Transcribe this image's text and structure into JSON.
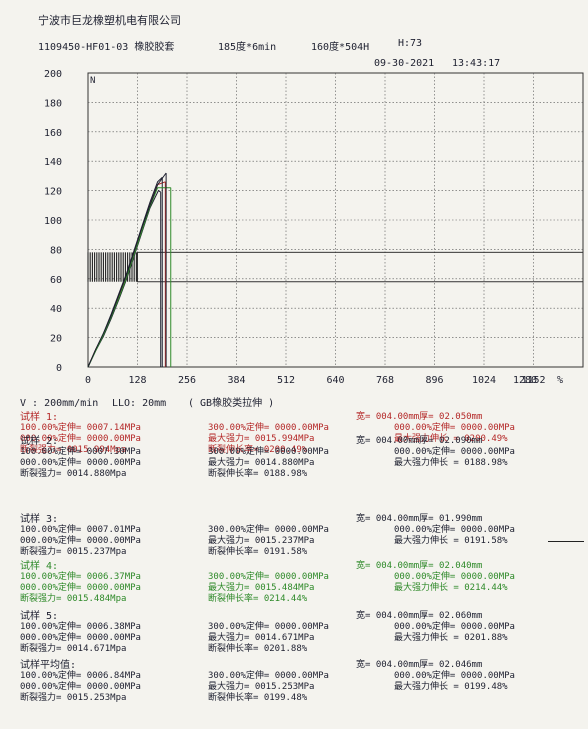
{
  "header": {
    "company": "宁波市巨龙橡塑机电有限公司",
    "product": "1109450-HF01-03 橡胶胶套",
    "cure": "185度*6min",
    "post_cure": "160度*504H",
    "hardness": "H:73",
    "date": "09-30-2021",
    "time": "13:43:17"
  },
  "chart_data": {
    "type": "line",
    "title": "",
    "xlabel": "",
    "ylabel": "",
    "x_unit": "%",
    "y_corner_label": "N",
    "xlim": [
      0,
      1280
    ],
    "ylim": [
      0,
      200
    ],
    "x_ticks": [
      "0",
      "128",
      "256",
      "384",
      "512",
      "640",
      "768",
      "896",
      "1024",
      "1152",
      "1280"
    ],
    "y_ticks": [
      "0",
      "20",
      "40",
      "60",
      "80",
      "100",
      "120",
      "140",
      "160",
      "180",
      "200"
    ],
    "grid": true,
    "series": [
      {
        "color": "#b42828",
        "x": [
          0,
          20,
          40,
          60,
          80,
          100,
          120,
          140,
          160,
          180,
          200
        ],
        "y": [
          0,
          12,
          22,
          35,
          48,
          62,
          78,
          95,
          110,
          124,
          126
        ]
      },
      {
        "color": "#1e2030",
        "x": [
          0,
          20,
          40,
          60,
          80,
          100,
          120,
          140,
          160,
          182,
          188
        ],
        "y": [
          0,
          11,
          21,
          33,
          46,
          60,
          76,
          92,
          108,
          120,
          119
        ]
      },
      {
        "color": "#1e2030",
        "x": [
          0,
          20,
          40,
          60,
          80,
          100,
          120,
          140,
          160,
          180,
          192
        ],
        "y": [
          0,
          12,
          23,
          36,
          50,
          64,
          80,
          96,
          112,
          126,
          129
        ]
      },
      {
        "color": "#2f8a2a",
        "x": [
          0,
          20,
          40,
          60,
          80,
          100,
          120,
          140,
          160,
          180,
          214
        ],
        "y": [
          0,
          11,
          22,
          34,
          47,
          61,
          77,
          93,
          109,
          122,
          122
        ]
      },
      {
        "color": "#1e2030",
        "x": [
          0,
          20,
          40,
          60,
          80,
          100,
          120,
          140,
          160,
          180,
          202
        ],
        "y": [
          0,
          12,
          23,
          35,
          49,
          63,
          79,
          95,
          110,
          124,
          132
        ]
      }
    ],
    "band": {
      "x_start": 0,
      "x_end": 128,
      "y_low": 58,
      "y_high": 78
    },
    "ref_box": {
      "x_start": 128,
      "x_end": 1280,
      "y_low": 58,
      "y_high": 78
    }
  },
  "params": {
    "speed": "V : 200mm/min",
    "llo": "LLO: 20mm",
    "standard": "( GB橡胶类拉伸 )"
  },
  "samples": [
    {
      "name": "试样 1:",
      "color": "red",
      "c1": [
        "100.00%定伸= 0007.14MPa",
        "000.00%定伸= 0000.00MPa",
        "断裂强力= 0015.994Mpa"
      ],
      "c2": [
        "300.00%定伸= 0000.00MPa",
        "最大强力= 0015.994MPa",
        "断裂伸长率= 0200.49%"
      ],
      "c3": [
        "宽= 004.00mm厚= 02.050mm",
        "000.00%定伸= 0000.00MPa",
        "最大强力伸长 = 0200.49%"
      ]
    },
    {
      "name": "试样 2:",
      "color": "black",
      "c1": [
        "100.00%定伸= 0007.30MPa",
        "000.00%定伸= 0000.00MPa",
        "断裂强力= 0014.880Mpa"
      ],
      "c2": [
        "300.00%定伸= 0000.00MPa",
        "最大强力= 0014.880MPa",
        "断裂伸长率= 0188.98%"
      ],
      "c3": [
        "宽= 004.00mm厚= 02.090mm",
        "000.00%定伸= 0000.00MPa",
        "最大强力伸长 = 0188.98%"
      ]
    },
    {
      "name": "试样 3:",
      "color": "black",
      "c1": [
        "100.00%定伸= 0007.01MPa",
        "000.00%定伸= 0000.00MPa",
        "断裂强力= 0015.237Mpa"
      ],
      "c2": [
        "300.00%定伸= 0000.00MPa",
        "最大强力= 0015.237MPa",
        "断裂伸长率= 0191.58%"
      ],
      "c3": [
        "宽= 004.00mm厚= 01.990mm",
        "000.00%定伸= 0000.00MPa",
        "最大强力伸长 = 0191.58%"
      ]
    },
    {
      "name": "试样 4:",
      "color": "green",
      "c1": [
        "100.00%定伸= 0006.37MPa",
        "000.00%定伸= 0000.00MPa",
        "断裂强力= 0015.484Mpa"
      ],
      "c2": [
        "300.00%定伸= 0000.00MPa",
        "最大强力= 0015.484MPa",
        "断裂伸长率= 0214.44%"
      ],
      "c3": [
        "宽= 004.00mm厚= 02.040mm",
        "000.00%定伸= 0000.00MPa",
        "最大强力伸长 = 0214.44%"
      ]
    },
    {
      "name": "试样 5:",
      "color": "black",
      "c1": [
        "100.00%定伸= 0006.38MPa",
        "000.00%定伸= 0000.00MPa",
        "断裂强力= 0014.671Mpa"
      ],
      "c2": [
        "300.00%定伸= 0000.00MPa",
        "最大强力= 0014.671MPa",
        "断裂伸长率= 0201.88%"
      ],
      "c3": [
        "宽= 004.00mm厚= 02.060mm",
        "000.00%定伸= 0000.00MPa",
        "最大强力伸长 = 0201.88%"
      ]
    },
    {
      "name": "试样平均值:",
      "color": "black",
      "c1": [
        "100.00%定伸= 0006.84MPa",
        "000.00%定伸= 0000.00MPa",
        "断裂强力= 0015.253Mpa"
      ],
      "c2": [
        "300.00%定伸= 0000.00MPa",
        "最大强力= 0015.253MPa",
        "断裂伸长率= 0199.48%"
      ],
      "c3": [
        "宽= 004.00mm厚= 02.046mm",
        "000.00%定伸= 0000.00MPa",
        "最大强力伸长 = 0199.48%"
      ]
    }
  ],
  "colors": {
    "red": "#b42828",
    "black": "#1e2030",
    "green": "#2f8a2a"
  }
}
